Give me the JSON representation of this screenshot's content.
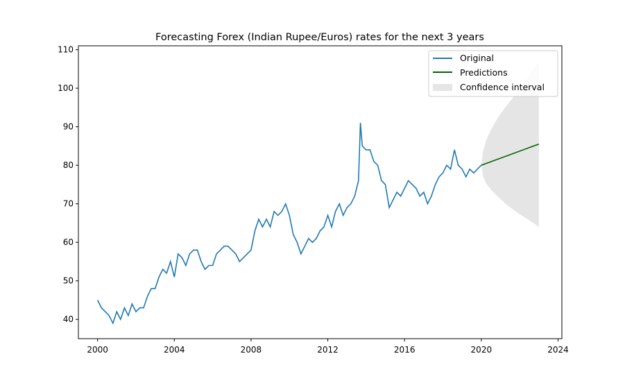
{
  "chart_data": {
    "type": "line",
    "title": "Forecasting Forex (Indian Rupee/Euros) rates for the next 3 years",
    "xlabel": "",
    "ylabel": "",
    "xlim": [
      1999.0,
      2024.2
    ],
    "ylim": [
      35,
      111
    ],
    "x_ticks": [
      2000,
      2004,
      2008,
      2012,
      2016,
      2020,
      2024
    ],
    "y_ticks": [
      40,
      50,
      60,
      70,
      80,
      90,
      100,
      110
    ],
    "grid": false,
    "legend_position": "top-right",
    "colors": {
      "original": "#1f77b4",
      "predictions": "#006400",
      "confidence": "#d3d3d3"
    },
    "series": [
      {
        "name": "Original",
        "x": [
          2000.0,
          2000.2,
          2000.4,
          2000.6,
          2000.8,
          2001.0,
          2001.2,
          2001.4,
          2001.6,
          2001.8,
          2002.0,
          2002.2,
          2002.4,
          2002.6,
          2002.8,
          2003.0,
          2003.2,
          2003.4,
          2003.6,
          2003.8,
          2004.0,
          2004.2,
          2004.4,
          2004.6,
          2004.8,
          2005.0,
          2005.2,
          2005.4,
          2005.6,
          2005.8,
          2006.0,
          2006.2,
          2006.4,
          2006.6,
          2006.8,
          2007.0,
          2007.2,
          2007.4,
          2007.6,
          2007.8,
          2008.0,
          2008.2,
          2008.4,
          2008.6,
          2008.8,
          2009.0,
          2009.2,
          2009.4,
          2009.6,
          2009.8,
          2010.0,
          2010.2,
          2010.4,
          2010.6,
          2010.8,
          2011.0,
          2011.2,
          2011.4,
          2011.6,
          2011.8,
          2012.0,
          2012.2,
          2012.4,
          2012.6,
          2012.8,
          2013.0,
          2013.2,
          2013.4,
          2013.6,
          2013.7,
          2013.8,
          2014.0,
          2014.2,
          2014.4,
          2014.6,
          2014.8,
          2015.0,
          2015.2,
          2015.4,
          2015.6,
          2015.8,
          2016.0,
          2016.2,
          2016.4,
          2016.6,
          2016.8,
          2017.0,
          2017.2,
          2017.4,
          2017.6,
          2017.8,
          2018.0,
          2018.2,
          2018.4,
          2018.6,
          2018.8,
          2019.0,
          2019.2,
          2019.4,
          2019.6,
          2019.8,
          2020.0
        ],
        "values": [
          45,
          43,
          42,
          41,
          39,
          42,
          40,
          43,
          41,
          44,
          42,
          43,
          43,
          46,
          48,
          48,
          51,
          53,
          52,
          55,
          51,
          57,
          56,
          54,
          57,
          58,
          58,
          55,
          53,
          54,
          54,
          57,
          58,
          59,
          59,
          58,
          57,
          55,
          56,
          57,
          58,
          63,
          66,
          64,
          66,
          64,
          68,
          67,
          68,
          70,
          67,
          62,
          60,
          57,
          59,
          61,
          60,
          61,
          63,
          64,
          67,
          64,
          68,
          70,
          67,
          69,
          70,
          72,
          76,
          91,
          85,
          84,
          84,
          81,
          80,
          76,
          75,
          69,
          71,
          73,
          72,
          74,
          76,
          75,
          74,
          72,
          73,
          70,
          72,
          75,
          77,
          78,
          80,
          79,
          84,
          80,
          79,
          77,
          79,
          78,
          79,
          80
        ]
      },
      {
        "name": "Predictions",
        "x": [
          2020.0,
          2023.0
        ],
        "values": [
          80,
          85.5
        ]
      }
    ],
    "confidence_interval": {
      "name": "Confidence interval",
      "x": [
        2020.0,
        2020.1,
        2020.25,
        2020.5,
        2020.75,
        2021.0,
        2021.25,
        2021.5,
        2021.75,
        2022.0,
        2022.25,
        2022.5,
        2022.75,
        2023.0
      ],
      "lower": [
        80.0,
        77.0,
        75.3,
        73.7,
        72.4,
        71.2,
        70.1,
        69.1,
        68.2,
        67.3,
        66.5,
        65.7,
        64.9,
        64.0
      ],
      "upper": [
        80.0,
        83.8,
        86.4,
        89.2,
        91.4,
        93.3,
        95.0,
        96.6,
        98.1,
        99.6,
        101.5,
        103.3,
        105.1,
        107.0
      ]
    }
  }
}
